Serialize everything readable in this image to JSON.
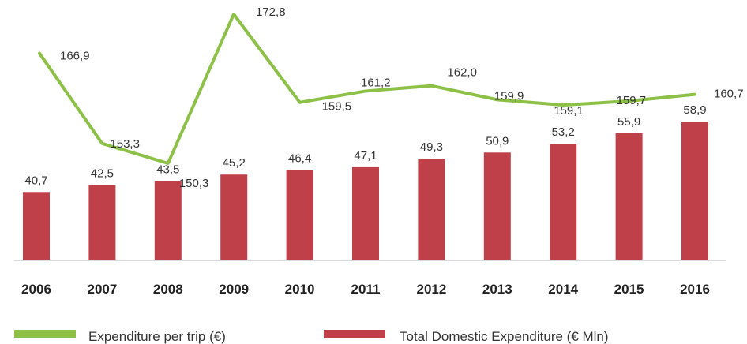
{
  "chart_data": {
    "type": "bar",
    "categories": [
      "2006",
      "2007",
      "2008",
      "2009",
      "2010",
      "2011",
      "2012",
      "2013",
      "2014",
      "2015",
      "2016"
    ],
    "series": [
      {
        "name": "Total Domestic Expenditure (€ Mln)",
        "type": "bar",
        "values": [
          40.7,
          42.5,
          43.5,
          45.2,
          46.4,
          47.1,
          49.3,
          50.9,
          53.2,
          55.9,
          58.9
        ],
        "labels": [
          "40,7",
          "42,5",
          "43,5",
          "45,2",
          "46,4",
          "47,1",
          "49,3",
          "50,9",
          "53,2",
          "55,9",
          "58,9"
        ],
        "color": "#c0404a"
      },
      {
        "name": "Expenditure per trip (€)",
        "type": "line",
        "values": [
          166.9,
          153.3,
          150.3,
          172.8,
          159.5,
          161.2,
          162.0,
          159.9,
          159.1,
          159.7,
          160.7
        ],
        "labels": [
          "166,9",
          "153,3",
          "150,3",
          "172,8",
          "159,5",
          "161,2",
          "162,0",
          "159,9",
          "159,1",
          "159,7",
          "160,7"
        ],
        "color": "#8dc047"
      }
    ],
    "legend": {
      "position": "bottom"
    },
    "grid": false
  }
}
